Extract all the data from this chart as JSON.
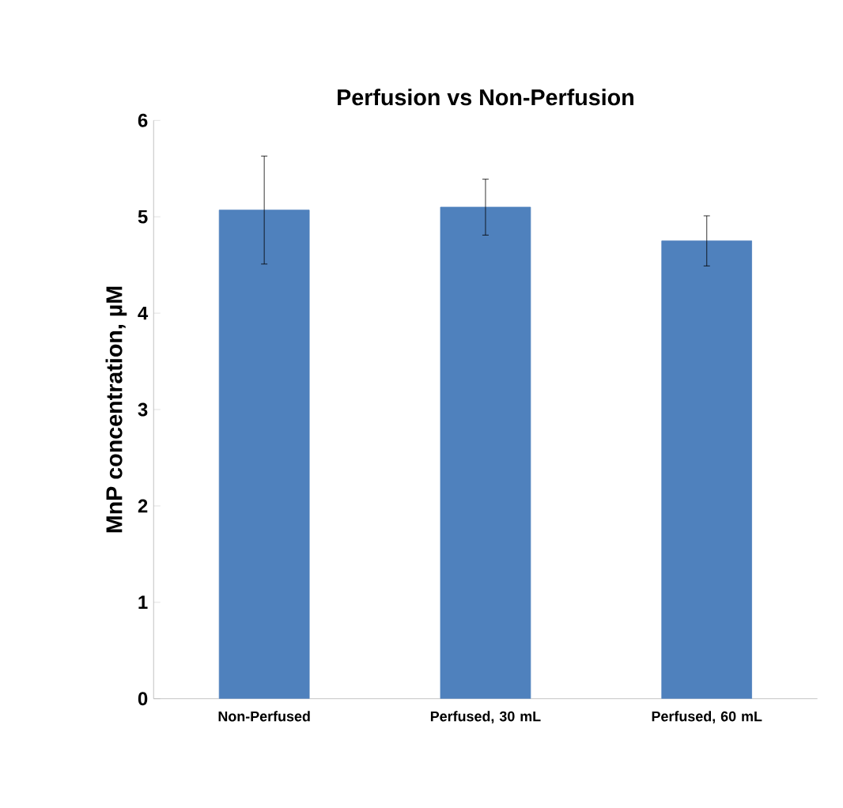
{
  "chart_data": {
    "type": "bar",
    "title": "Perfusion vs Non-Perfusion",
    "ylabel": "MnP concentration, µM",
    "categories": [
      "Non-Perfused",
      "Perfused, 30 mL",
      "Perfused, 60 mL"
    ],
    "values": [
      5.07,
      5.1,
      4.75
    ],
    "errors": [
      0.56,
      0.29,
      0.26
    ],
    "color": "#4f81bd",
    "ylim": [
      0,
      6
    ],
    "yticks": [
      0,
      1,
      2,
      3,
      4,
      5,
      6
    ]
  }
}
